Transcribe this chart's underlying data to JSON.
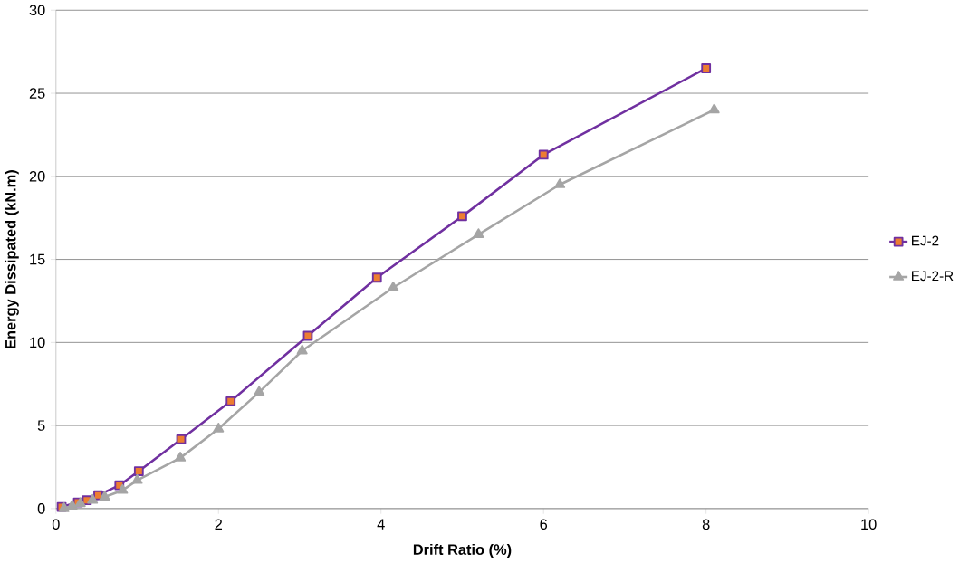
{
  "chart_data": {
    "type": "line",
    "xlabel": "Drift Ratio (%)",
    "ylabel": "Energy Dissipated (kN.m)",
    "xlim": [
      0,
      10
    ],
    "xticks": [
      0,
      2,
      4,
      6,
      8,
      10
    ],
    "ylim": [
      0,
      30
    ],
    "yticks": [
      0,
      5,
      10,
      15,
      20,
      25,
      30
    ],
    "grid": "y",
    "legend": "right",
    "series": [
      {
        "name": "EJ-2",
        "color": "#7030a0",
        "marker": "square",
        "x": [
          0.07,
          0.27,
          0.38,
          0.52,
          0.78,
          1.02,
          1.54,
          2.15,
          3.1,
          3.95,
          5.0,
          6.0,
          8.0
        ],
        "values": [
          0.1,
          0.37,
          0.5,
          0.8,
          1.4,
          2.25,
          4.17,
          6.46,
          10.4,
          13.9,
          17.6,
          21.3,
          26.5
        ]
      },
      {
        "name": "EJ-2-R",
        "color": "#a5a5a5",
        "marker": "triangle",
        "x": [
          0.1,
          0.2,
          0.3,
          0.45,
          0.6,
          0.82,
          1.0,
          1.53,
          2.0,
          2.5,
          3.03,
          4.15,
          5.2,
          6.2,
          8.1
        ],
        "values": [
          0,
          0.15,
          0.3,
          0.5,
          0.7,
          1.1,
          1.7,
          3.05,
          4.8,
          7.0,
          9.5,
          13.3,
          16.5,
          19.5,
          24.0
        ]
      }
    ]
  }
}
